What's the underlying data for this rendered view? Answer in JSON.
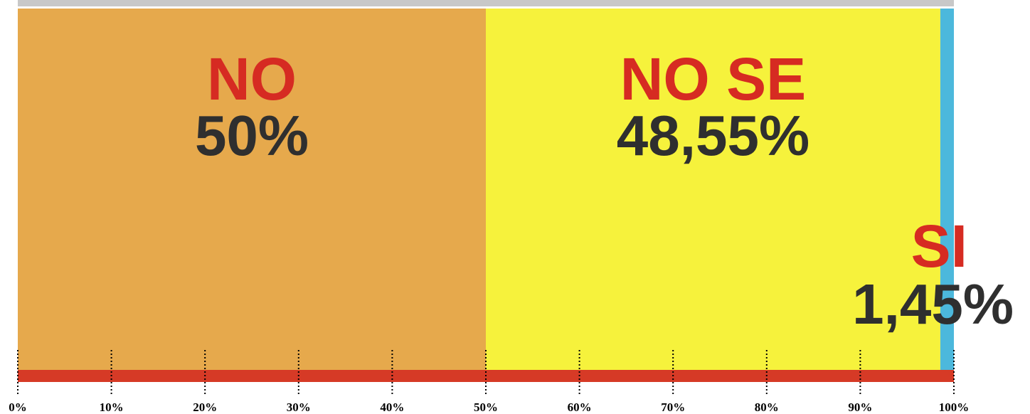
{
  "chart_data": {
    "type": "bar",
    "orientation": "horizontal",
    "stacked": true,
    "series": [
      {
        "name": "NO",
        "color": "#e6a94c",
        "values": [
          50
        ],
        "value_labels": [
          "50%"
        ]
      },
      {
        "name": "NO SE",
        "color": "#f6f23c",
        "values": [
          48.55
        ],
        "value_labels": [
          "48,55%"
        ]
      },
      {
        "name": "SI",
        "color": "#4cb8dc",
        "values": [
          1.45
        ],
        "value_labels": [
          "1,45%"
        ]
      }
    ],
    "xlim": [
      0,
      100
    ],
    "xticks": [
      {
        "value": 0,
        "label": "0%"
      },
      {
        "value": 10,
        "label": "10%"
      },
      {
        "value": 20,
        "label": "20%"
      },
      {
        "value": 30,
        "label": "30%"
      },
      {
        "value": 40,
        "label": "40%"
      },
      {
        "value": 50,
        "label": "50%"
      },
      {
        "value": 60,
        "label": "60%"
      },
      {
        "value": 70,
        "label": "70%"
      },
      {
        "value": 80,
        "label": "80%"
      },
      {
        "value": 90,
        "label": "90%"
      },
      {
        "value": 100,
        "label": "100%"
      }
    ],
    "axis_color": "#d63a26"
  }
}
